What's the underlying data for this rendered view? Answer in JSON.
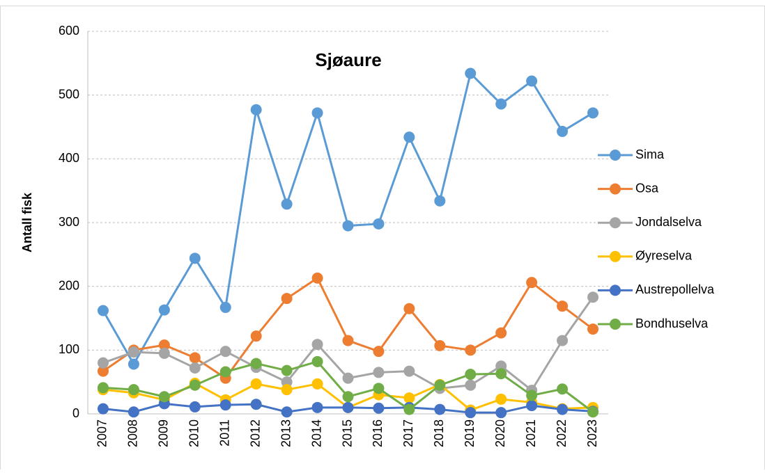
{
  "chart_data": {
    "type": "line",
    "title": "Sjøaure",
    "y_label": "Antall fisk",
    "categories": [
      "2007",
      "2008",
      "2009",
      "2010",
      "2011",
      "2012",
      "2013",
      "2014",
      "2015",
      "2016",
      "2017",
      "2018",
      "2019",
      "2020",
      "2021",
      "2022",
      "2023"
    ],
    "series": [
      {
        "name": "Sima",
        "color": "#5b9bd5",
        "values": [
          162,
          78,
          163,
          244,
          167,
          477,
          329,
          472,
          295,
          298,
          434,
          334,
          534,
          486,
          522,
          443,
          472
        ]
      },
      {
        "name": "Osa",
        "color": "#ed7d31",
        "values": [
          67,
          100,
          108,
          88,
          56,
          122,
          181,
          213,
          115,
          98,
          165,
          107,
          100,
          127,
          206,
          169,
          133
        ]
      },
      {
        "name": "Jondalselva",
        "color": "#a5a5a5",
        "values": [
          80,
          97,
          95,
          72,
          98,
          73,
          50,
          109,
          56,
          65,
          67,
          40,
          45,
          75,
          37,
          115,
          183
        ]
      },
      {
        "name": "Øyreselva",
        "color": "#ffc000",
        "values": [
          38,
          33,
          22,
          48,
          22,
          47,
          38,
          47,
          10,
          30,
          25,
          46,
          6,
          23,
          18,
          8,
          10
        ]
      },
      {
        "name": "Austrepollelva",
        "color": "#4472c4",
        "values": [
          8,
          3,
          16,
          11,
          14,
          15,
          3,
          10,
          10,
          9,
          10,
          7,
          2,
          2,
          13,
          7,
          4
        ]
      },
      {
        "name": "Bondhuselva",
        "color": "#70ad47",
        "values": [
          41,
          38,
          27,
          45,
          66,
          79,
          68,
          82,
          27,
          40,
          7,
          45,
          62,
          63,
          29,
          39,
          3
        ]
      }
    ],
    "ylim": [
      0,
      600
    ],
    "yticks": [
      0,
      100,
      200,
      300,
      400,
      500,
      600
    ],
    "grid": true
  }
}
